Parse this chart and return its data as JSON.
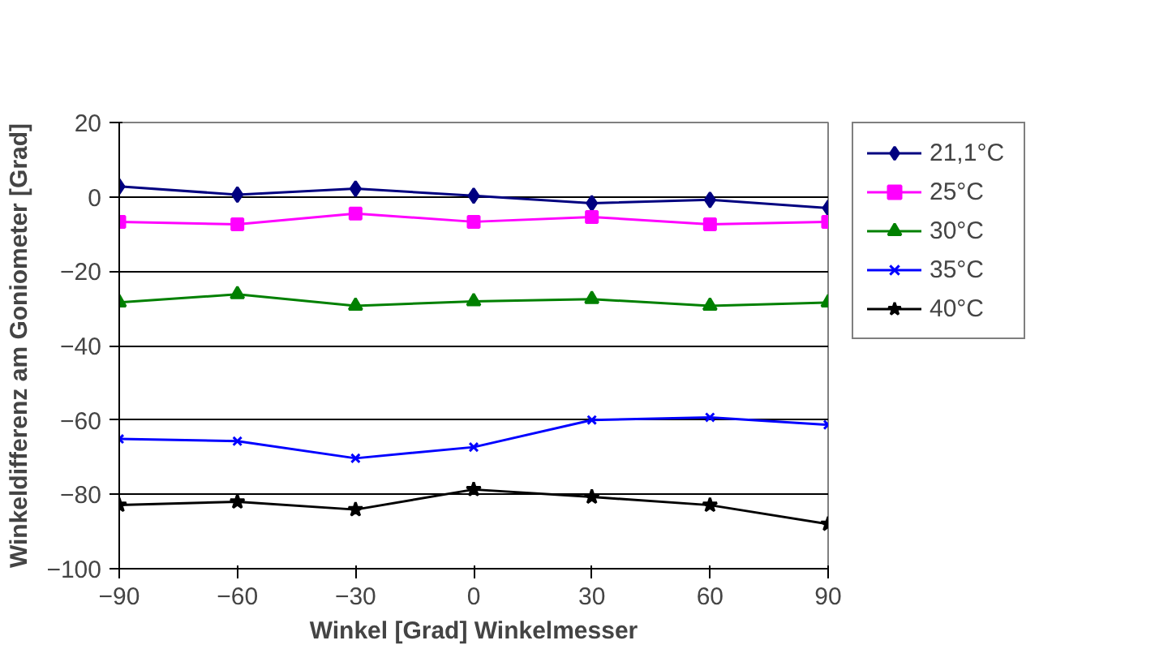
{
  "chart_data": {
    "type": "line",
    "xlabel": "Winkel [Grad] Winkelmesser",
    "ylabel": "Winkeldifferenz am Goniometer [Grad]",
    "x": [
      -90,
      -60,
      -30,
      0,
      30,
      60,
      90
    ],
    "series": [
      {
        "name": "21,1°C",
        "color": "#000080",
        "marker": "diamond",
        "values": [
          2.8,
          0.6,
          2.2,
          0.3,
          -1.7,
          -0.8,
          -3.0
        ]
      },
      {
        "name": "25°C",
        "color": "#ff00ff",
        "marker": "square",
        "values": [
          -6.7,
          -7.4,
          -4.5,
          -6.7,
          -5.4,
          -7.4,
          -6.7
        ]
      },
      {
        "name": "30°C",
        "color": "#008000",
        "marker": "triangle",
        "values": [
          -28.4,
          -26.2,
          -29.3,
          -28.1,
          -27.5,
          -29.3,
          -28.4
        ]
      },
      {
        "name": "35°C",
        "color": "#0000ff",
        "marker": "x",
        "values": [
          -65.1,
          -65.7,
          -70.3,
          -67.3,
          -60.0,
          -59.3,
          -61.3
        ]
      },
      {
        "name": "40°C",
        "color": "#000000",
        "marker": "star",
        "values": [
          -82.9,
          -82.0,
          -84.1,
          -78.7,
          -80.7,
          -82.9,
          -88.0
        ]
      }
    ],
    "xlim": [
      -90,
      90
    ],
    "xticks": [
      -90,
      -60,
      -30,
      0,
      30,
      60,
      90
    ],
    "ylim": [
      -100,
      20
    ],
    "yticks": [
      -100,
      -80,
      -60,
      -40,
      -20,
      0,
      20
    ],
    "grid": "y",
    "legend": "right"
  }
}
